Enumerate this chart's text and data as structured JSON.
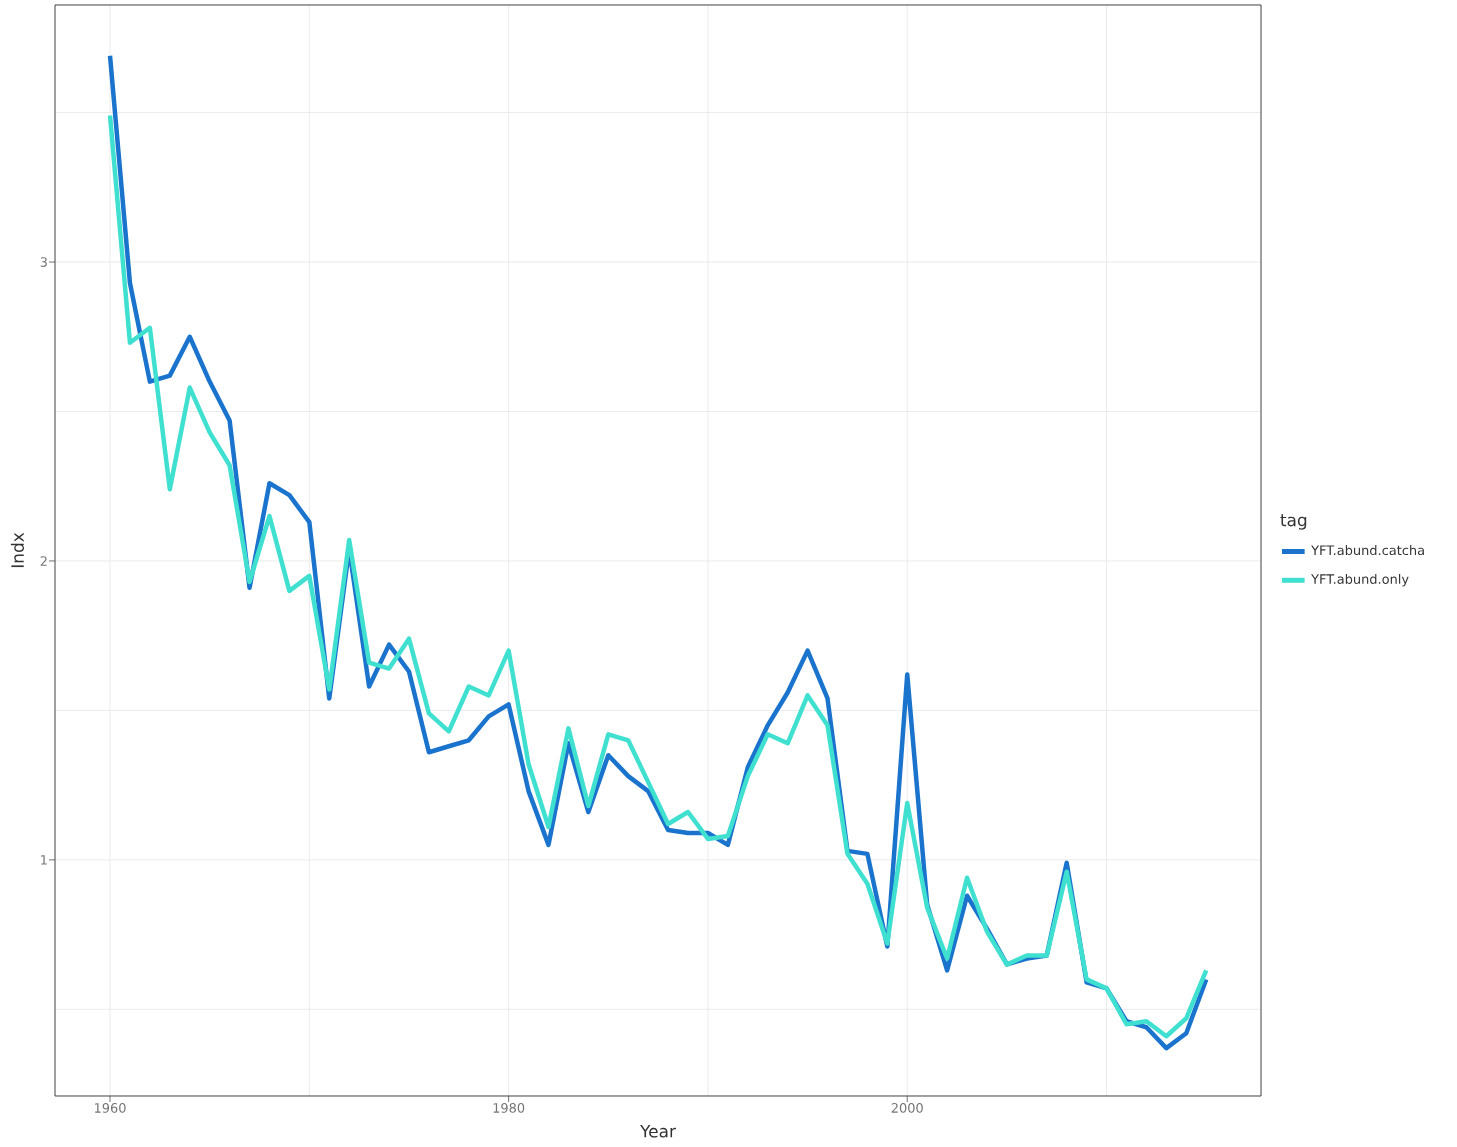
{
  "chart_data": {
    "type": "line",
    "xlabel": "Year",
    "ylabel": "Indx",
    "legend_title": "tag",
    "x": [
      1960,
      1961,
      1962,
      1963,
      1964,
      1965,
      1966,
      1967,
      1968,
      1969,
      1970,
      1971,
      1972,
      1973,
      1974,
      1975,
      1976,
      1977,
      1978,
      1979,
      1980,
      1981,
      1982,
      1983,
      1984,
      1985,
      1986,
      1987,
      1988,
      1989,
      1990,
      1991,
      1992,
      1993,
      1994,
      1995,
      1996,
      1997,
      1998,
      1999,
      2000,
      2001,
      2002,
      2003,
      2004,
      2005,
      2006,
      2007,
      2008,
      2009,
      2010,
      2011,
      2012,
      2013,
      2014,
      2015
    ],
    "series": [
      {
        "name": "YFT.abund.catcha",
        "color": "#1a73cc",
        "values": [
          3.69,
          2.93,
          2.6,
          2.62,
          2.75,
          2.6,
          2.47,
          1.91,
          2.26,
          2.22,
          2.13,
          1.54,
          2.04,
          1.58,
          1.72,
          1.63,
          1.36,
          1.38,
          1.4,
          1.48,
          1.52,
          1.23,
          1.05,
          1.39,
          1.16,
          1.35,
          1.28,
          1.23,
          1.1,
          1.09,
          1.09,
          1.05,
          1.31,
          1.45,
          1.56,
          1.7,
          1.54,
          1.03,
          1.02,
          0.71,
          1.62,
          0.85,
          0.63,
          0.88,
          0.77,
          0.65,
          0.67,
          0.68,
          0.99,
          0.59,
          0.57,
          0.46,
          0.44,
          0.37,
          0.42,
          0.6
        ]
      },
      {
        "name": "YFT.abund.only",
        "color": "#40e0d0",
        "values": [
          3.49,
          2.73,
          2.78,
          2.24,
          2.58,
          2.43,
          2.32,
          1.93,
          2.15,
          1.9,
          1.95,
          1.57,
          2.07,
          1.66,
          1.64,
          1.74,
          1.49,
          1.43,
          1.58,
          1.55,
          1.7,
          1.32,
          1.11,
          1.44,
          1.18,
          1.42,
          1.4,
          1.26,
          1.12,
          1.16,
          1.07,
          1.08,
          1.28,
          1.42,
          1.39,
          1.55,
          1.45,
          1.02,
          0.92,
          0.72,
          1.19,
          0.84,
          0.67,
          0.94,
          0.76,
          0.65,
          0.68,
          0.68,
          0.96,
          0.6,
          0.57,
          0.45,
          0.46,
          0.41,
          0.47,
          0.63
        ]
      }
    ],
    "xlim": [
      1957.24,
      2017.75
    ],
    "ylim": [
      0.21,
      3.86
    ],
    "xticks": [
      1960,
      {
        "value": 1970,
        "label": null
      },
      1980,
      {
        "value": 1990,
        "label": null
      },
      2000,
      {
        "value": 2010,
        "label": null
      }
    ],
    "yticks": [
      {
        "value": 0.5,
        "label": null
      },
      1,
      {
        "value": 1.5,
        "label": null
      },
      2,
      {
        "value": 2.5,
        "label": null
      },
      3,
      {
        "value": 3.5,
        "label": null
      }
    ],
    "grid": true,
    "legend": "right",
    "line_style": "solid",
    "marker": "none"
  }
}
